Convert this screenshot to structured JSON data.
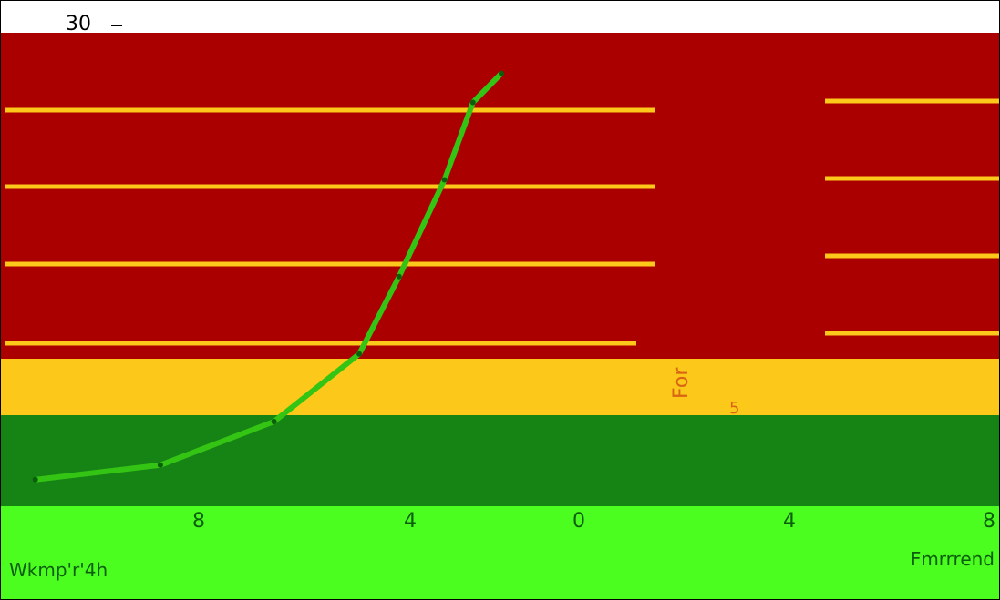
{
  "chart_data": {
    "type": "line",
    "y_top_tick": "30",
    "y_axis_label": "For",
    "mid_tick": "5",
    "x_tick_labels": [
      "8",
      "4",
      "0",
      "4",
      "8"
    ],
    "bottom_left_label": "Wkmp'r'4h",
    "bottom_right_label": "Fmrrrend",
    "series": [
      {
        "values": [
          [
            -8.2,
            -13.0
          ],
          [
            -6.0,
            -11.5
          ],
          [
            -4.0,
            -7.0
          ],
          [
            -2.5,
            0.0
          ],
          [
            -1.8,
            8.0
          ],
          [
            -1.0,
            18.0
          ],
          [
            -0.5,
            26.0
          ],
          [
            0.0,
            29.0
          ]
        ]
      }
    ],
    "colors": {
      "red_band": "#aa0000",
      "yellow_band": "#fcc81a",
      "dark_green_band": "#158414",
      "light_green_band": "#4cfe20",
      "gridline": "#fcc81a",
      "series_line": "#34c414"
    }
  }
}
